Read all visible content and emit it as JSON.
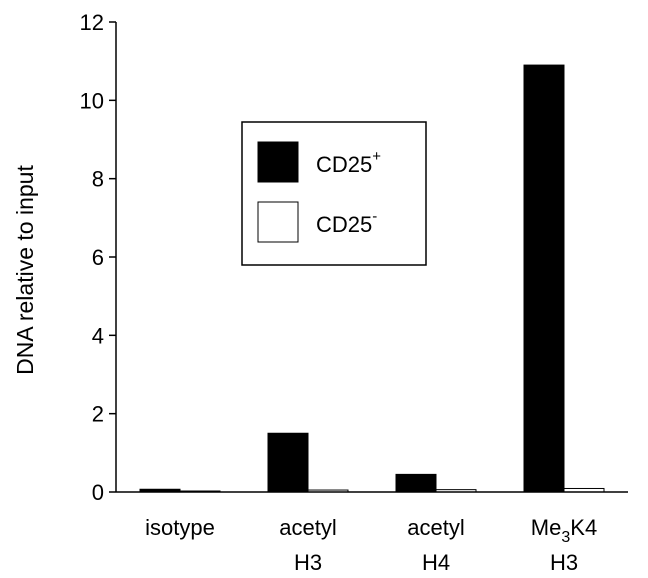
{
  "chart_data": {
    "type": "bar",
    "title": "",
    "ylabel": "DNA relative to input",
    "xlabel": "",
    "ylim": [
      0,
      12
    ],
    "yticks": [
      0,
      2,
      4,
      6,
      8,
      10,
      12
    ],
    "grid": false,
    "legend_position": "top-center",
    "categories": [
      {
        "line1": "isotype",
        "line2": "",
        "line1_sub": "",
        "line1_tail": ""
      },
      {
        "line1": "acetyl",
        "line2": "H3",
        "line1_sub": "",
        "line1_tail": ""
      },
      {
        "line1": "acetyl",
        "line2": "H4",
        "line1_sub": "",
        "line1_tail": ""
      },
      {
        "line1": "Me",
        "line2": "H3",
        "line1_sub": "3",
        "line1_tail": "K4"
      }
    ],
    "series": [
      {
        "base": "CD25",
        "sup": "+",
        "color": "#000000",
        "values": [
          0.07,
          1.5,
          0.45,
          10.9
        ]
      },
      {
        "base": "CD25",
        "sup": "-",
        "color": "#ffffff",
        "values": [
          0.02,
          0.05,
          0.06,
          0.09
        ]
      }
    ]
  }
}
